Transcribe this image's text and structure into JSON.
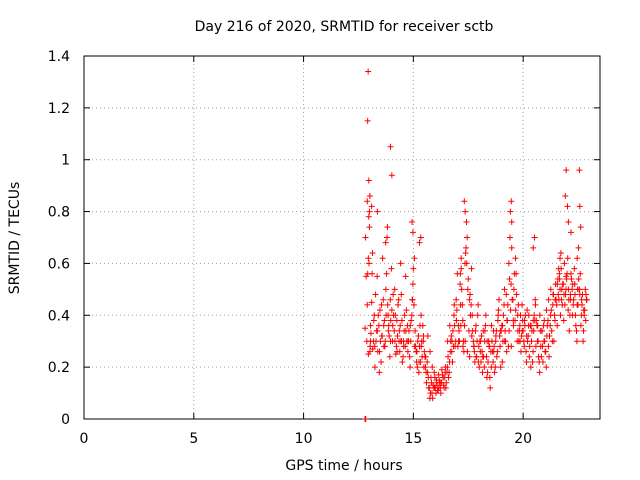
{
  "chart_data": {
    "type": "scatter",
    "title": "Day 216 of 2020, SRMTID for receiver sctb",
    "xlabel": "GPS time / hours",
    "ylabel": "SRMTID / TECUs",
    "xlim": [
      0,
      23.5
    ],
    "ylim": [
      0,
      1.4
    ],
    "x_ticks": [
      0,
      5,
      10,
      15,
      20
    ],
    "x_tick_labels": [
      "0",
      "5",
      "10",
      "15",
      "20"
    ],
    "y_ticks": [
      0,
      0.2,
      0.4,
      0.6,
      0.8,
      1.0,
      1.2,
      1.4
    ],
    "y_tick_labels": [
      "0",
      "0.2",
      "0.4",
      "0.6",
      "0.8",
      "1",
      "1.2",
      "1.4"
    ],
    "grid": true,
    "marker": "+",
    "color": "#ff0000",
    "series": [
      {
        "name": "SRMTID",
        "x": [
          12.8,
          12.82,
          12.85,
          12.88,
          12.9,
          12.92,
          12.95,
          12.98,
          13.0,
          13.05,
          13.1,
          13.15,
          13.2,
          13.25,
          13.3,
          13.35,
          13.4,
          13.45,
          13.5,
          13.55,
          13.6,
          13.65,
          13.7,
          13.75,
          13.8,
          13.85,
          13.9,
          13.95,
          14.0,
          14.05,
          14.1,
          14.15,
          14.2,
          14.25,
          14.3,
          14.35,
          14.4,
          14.45,
          14.5,
          14.55,
          14.6,
          14.65,
          14.7,
          14.75,
          14.8,
          14.85,
          14.9,
          14.95,
          15.0,
          15.05,
          15.1,
          15.15,
          15.2,
          15.25,
          15.3,
          15.35,
          15.4,
          15.45,
          15.5,
          15.55,
          15.6,
          15.65,
          15.7,
          15.75,
          15.8,
          15.85,
          15.9,
          15.95,
          16.0,
          16.05,
          16.1,
          16.15,
          16.2,
          16.25,
          16.3,
          16.35,
          16.4,
          16.45,
          16.5,
          16.55,
          16.6,
          16.65,
          16.7,
          16.75,
          16.8,
          16.85,
          16.9,
          16.95,
          17.0,
          17.05,
          17.1,
          17.15,
          17.2,
          17.25,
          17.3,
          17.35,
          17.4,
          17.45,
          17.5,
          17.55,
          17.6,
          17.65,
          17.7,
          17.75,
          17.8,
          17.85,
          17.9,
          17.95,
          18.0,
          18.05,
          18.1,
          18.15,
          18.2,
          18.25,
          18.3,
          18.35,
          18.4,
          18.45,
          18.5,
          18.55,
          18.6,
          18.65,
          18.7,
          18.75,
          18.8,
          18.85,
          18.9,
          18.95,
          19.0,
          19.05,
          19.1,
          19.15,
          19.2,
          19.25,
          19.3,
          19.35,
          19.4,
          19.45,
          19.5,
          19.55,
          19.6,
          19.65,
          19.7,
          19.75,
          19.8,
          19.85,
          19.9,
          19.95,
          20.0,
          20.05,
          20.1,
          20.15,
          20.2,
          20.25,
          20.3,
          20.35,
          20.4,
          20.45,
          20.5,
          20.55,
          20.6,
          20.65,
          20.7,
          20.75,
          20.8,
          20.85,
          20.9,
          20.95,
          21.0,
          21.05,
          21.1,
          21.15,
          21.2,
          21.25,
          21.3,
          21.35,
          21.4,
          21.45,
          21.5,
          21.55,
          21.6,
          21.65,
          21.7,
          21.75,
          21.8,
          21.85,
          21.9,
          21.95,
          22.0,
          22.05,
          22.1,
          22.15,
          22.2,
          22.25,
          22.3,
          22.35,
          22.4,
          22.45,
          22.5,
          22.55,
          22.6,
          22.65,
          22.7,
          22.75,
          22.8,
          22.85,
          22.9,
          12.95,
          13.0,
          13.02,
          13.05,
          13.12,
          13.18,
          13.22,
          13.28,
          13.33,
          13.38,
          13.43,
          13.48,
          13.53,
          13.58,
          13.63,
          13.68,
          13.72,
          13.78,
          13.83,
          13.88,
          13.93,
          13.97,
          14.02,
          14.08,
          14.13,
          14.18,
          14.23,
          14.28,
          14.33,
          14.38,
          14.43,
          14.48,
          14.53,
          14.58,
          14.63,
          14.68,
          14.73,
          14.78,
          14.83,
          14.88,
          14.93,
          14.98,
          15.03,
          15.08,
          15.13,
          15.18,
          15.23,
          15.28,
          15.33,
          15.38,
          15.43,
          15.48,
          15.53,
          15.58,
          15.63,
          15.68,
          15.73,
          15.78,
          15.83,
          15.88,
          15.93,
          15.98,
          16.03,
          16.08,
          16.13,
          16.18,
          16.23,
          16.28,
          16.33,
          16.38,
          16.43,
          16.48,
          16.53,
          16.58,
          16.63,
          16.68,
          16.73,
          16.78,
          16.83,
          16.88,
          16.93,
          16.98,
          17.03,
          17.08,
          17.13,
          17.18,
          17.23,
          17.28,
          17.33,
          17.38,
          17.43,
          17.48,
          17.53,
          17.58,
          17.63,
          17.68,
          17.73,
          17.78,
          17.83,
          17.88,
          17.93,
          17.98,
          18.03,
          18.08,
          18.13,
          18.18,
          18.23,
          18.28,
          18.33,
          18.38,
          18.43,
          18.48,
          18.53,
          18.58,
          18.63,
          18.68,
          18.73,
          18.78,
          18.83,
          18.88,
          18.93,
          18.98,
          19.03,
          19.08,
          19.13,
          19.18,
          19.23,
          19.28,
          19.33,
          19.38,
          19.43,
          19.48,
          19.53,
          19.58,
          19.63,
          19.68,
          19.73,
          19.78,
          19.83,
          19.88,
          19.93,
          19.98,
          20.03,
          20.08,
          20.13,
          20.18,
          20.23,
          20.28,
          20.33,
          20.38,
          20.43,
          20.48,
          20.53,
          20.58,
          20.63,
          20.68,
          20.73,
          20.78,
          20.83,
          20.88,
          20.93,
          20.98,
          21.03,
          21.08,
          21.13,
          21.18,
          21.23,
          21.28,
          21.33,
          21.38,
          21.43,
          21.48,
          21.53,
          21.58,
          21.63,
          21.68,
          21.73,
          21.78,
          21.83,
          21.88,
          21.93,
          21.98,
          22.03,
          22.08,
          22.13,
          22.18,
          22.23,
          22.28,
          22.33,
          22.38,
          22.43,
          22.48,
          22.53,
          22.58,
          22.63,
          22.68,
          22.73,
          22.78,
          22.83,
          22.88,
          12.9,
          12.97,
          13.03,
          13.07,
          13.14,
          13.24,
          13.36,
          13.46,
          13.56,
          13.66,
          13.76,
          13.86,
          13.96,
          14.06,
          14.16,
          14.26,
          14.36,
          14.46,
          14.56,
          14.66,
          14.76,
          14.86,
          14.96,
          15.06,
          15.16,
          15.26,
          15.36,
          15.46,
          15.56,
          15.66,
          15.76,
          15.86,
          15.96,
          16.06,
          16.16,
          16.26,
          16.36,
          16.46,
          16.56,
          16.66,
          16.76,
          16.86,
          16.96,
          17.06,
          17.16,
          17.26,
          17.36,
          17.46,
          17.56,
          17.66,
          17.76,
          17.86,
          17.96,
          18.06,
          18.16,
          18.26,
          18.36,
          18.46,
          18.56,
          18.66,
          18.76,
          18.86,
          18.96,
          19.06,
          19.16,
          19.26,
          19.36,
          19.46,
          19.56,
          19.66,
          19.76,
          19.86,
          19.96,
          20.06,
          20.16,
          20.26,
          20.36,
          20.46,
          20.56,
          20.66,
          20.76,
          20.86,
          20.96,
          21.06,
          21.16,
          21.26,
          21.36,
          21.46,
          21.56,
          21.66,
          21.76,
          21.86,
          21.96,
          22.06,
          22.16,
          22.26,
          22.36,
          22.46,
          22.56,
          22.66,
          22.76,
          22.86,
          12.8,
          12.81,
          12.83,
          12.92,
          12.94,
          12.97,
          13.02,
          13.1,
          13.36,
          13.96,
          14.02,
          13.82,
          13.74,
          14.94,
          14.98,
          17.32,
          17.42,
          17.36,
          19.42,
          19.48,
          19.46,
          21.96,
          21.92,
          22.02,
          22.06,
          22.56,
          22.58,
          22.62,
          22.46,
          22.52,
          22.18,
          21.62,
          21.68,
          21.72,
          20.52,
          20.46,
          17.14,
          17.18,
          15.28,
          15.34,
          14.42
        ],
        "y": [
          0.35,
          0.7,
          0.55,
          0.3,
          0.84,
          0.56,
          0.25,
          0.6,
          0.8,
          0.3,
          0.45,
          0.27,
          0.38,
          0.2,
          0.3,
          0.55,
          0.4,
          0.18,
          0.3,
          0.44,
          0.62,
          0.36,
          0.28,
          0.5,
          0.7,
          0.4,
          0.32,
          0.46,
          0.58,
          0.3,
          0.4,
          0.5,
          0.25,
          0.38,
          0.44,
          0.3,
          0.36,
          0.48,
          0.22,
          0.3,
          0.4,
          0.55,
          0.3,
          0.26,
          0.34,
          0.2,
          0.38,
          0.46,
          0.58,
          0.62,
          0.28,
          0.22,
          0.3,
          0.18,
          0.36,
          0.4,
          0.24,
          0.3,
          0.26,
          0.2,
          0.14,
          0.18,
          0.12,
          0.08,
          0.16,
          0.1,
          0.13,
          0.18,
          0.12,
          0.15,
          0.11,
          0.17,
          0.14,
          0.1,
          0.19,
          0.16,
          0.12,
          0.18,
          0.14,
          0.2,
          0.16,
          0.22,
          0.3,
          0.26,
          0.34,
          0.4,
          0.28,
          0.46,
          0.56,
          0.36,
          0.3,
          0.44,
          0.5,
          0.38,
          0.26,
          0.6,
          0.66,
          0.7,
          0.54,
          0.46,
          0.4,
          0.58,
          0.34,
          0.28,
          0.22,
          0.36,
          0.3,
          0.44,
          0.2,
          0.26,
          0.32,
          0.18,
          0.24,
          0.3,
          0.4,
          0.16,
          0.22,
          0.28,
          0.12,
          0.2,
          0.26,
          0.34,
          0.18,
          0.3,
          0.24,
          0.38,
          0.46,
          0.28,
          0.34,
          0.22,
          0.4,
          0.5,
          0.3,
          0.26,
          0.44,
          0.6,
          0.7,
          0.52,
          0.46,
          0.38,
          0.56,
          0.62,
          0.48,
          0.4,
          0.3,
          0.36,
          0.26,
          0.44,
          0.34,
          0.28,
          0.4,
          0.22,
          0.3,
          0.36,
          0.28,
          0.2,
          0.34,
          0.26,
          0.4,
          0.46,
          0.38,
          0.3,
          0.24,
          0.18,
          0.28,
          0.34,
          0.22,
          0.3,
          0.26,
          0.2,
          0.36,
          0.28,
          0.32,
          0.4,
          0.34,
          0.44,
          0.3,
          0.38,
          0.46,
          0.36,
          0.48,
          0.56,
          0.4,
          0.46,
          0.52,
          0.38,
          0.44,
          0.5,
          0.56,
          0.42,
          0.34,
          0.48,
          0.54,
          0.4,
          0.46,
          0.52,
          0.36,
          0.3,
          0.44,
          0.5,
          0.56,
          0.4,
          0.48,
          0.34,
          0.42,
          0.38,
          0.46,
          0.62,
          0.74,
          0.26,
          0.36,
          0.56,
          0.3,
          0.4,
          0.48,
          0.34,
          0.26,
          0.36,
          0.42,
          0.22,
          0.32,
          0.46,
          0.38,
          0.3,
          0.56,
          0.44,
          0.36,
          0.24,
          0.38,
          0.42,
          0.48,
          0.34,
          0.4,
          0.28,
          0.32,
          0.46,
          0.26,
          0.3,
          0.38,
          0.24,
          0.34,
          0.28,
          0.42,
          0.36,
          0.3,
          0.24,
          0.3,
          0.4,
          0.52,
          0.44,
          0.34,
          0.26,
          0.2,
          0.32,
          0.28,
          0.22,
          0.3,
          0.36,
          0.2,
          0.24,
          0.18,
          0.22,
          0.16,
          0.12,
          0.1,
          0.14,
          0.08,
          0.12,
          0.16,
          0.1,
          0.13,
          0.11,
          0.15,
          0.12,
          0.14,
          0.17,
          0.13,
          0.16,
          0.12,
          0.18,
          0.24,
          0.18,
          0.26,
          0.32,
          0.22,
          0.28,
          0.36,
          0.3,
          0.42,
          0.28,
          0.34,
          0.52,
          0.58,
          0.44,
          0.3,
          0.36,
          0.64,
          0.6,
          0.5,
          0.34,
          0.48,
          0.44,
          0.4,
          0.3,
          0.26,
          0.34,
          0.24,
          0.4,
          0.28,
          0.3,
          0.22,
          0.26,
          0.34,
          0.2,
          0.36,
          0.24,
          0.18,
          0.3,
          0.16,
          0.26,
          0.3,
          0.22,
          0.28,
          0.2,
          0.34,
          0.26,
          0.42,
          0.32,
          0.2,
          0.36,
          0.3,
          0.44,
          0.34,
          0.48,
          0.38,
          0.28,
          0.54,
          0.42,
          0.66,
          0.46,
          0.5,
          0.38,
          0.56,
          0.3,
          0.44,
          0.34,
          0.4,
          0.32,
          0.38,
          0.3,
          0.36,
          0.26,
          0.42,
          0.32,
          0.24,
          0.36,
          0.3,
          0.22,
          0.34,
          0.38,
          0.28,
          0.36,
          0.3,
          0.22,
          0.34,
          0.24,
          0.28,
          0.36,
          0.3,
          0.26,
          0.32,
          0.38,
          0.24,
          0.36,
          0.42,
          0.3,
          0.48,
          0.4,
          0.52,
          0.44,
          0.54,
          0.46,
          0.5,
          0.58,
          0.44,
          0.52,
          0.6,
          0.48,
          0.54,
          0.62,
          0.46,
          0.4,
          0.56,
          0.5,
          0.44,
          0.58,
          0.4,
          0.34,
          0.5,
          0.54,
          0.48,
          0.36,
          0.44,
          0.3,
          0.4,
          0.5,
          0.46,
          0.44,
          0.78,
          0.28,
          0.33,
          0.64,
          0.28,
          0.34,
          0.26,
          0.32,
          0.28,
          0.4,
          0.34,
          0.3,
          0.36,
          0.3,
          0.26,
          0.34,
          0.3,
          0.28,
          0.34,
          0.3,
          0.36,
          0.46,
          0.28,
          0.26,
          0.22,
          0.28,
          0.32,
          0.24,
          0.32,
          0.26,
          0.2,
          0.12,
          0.14,
          0.12,
          0.14,
          0.16,
          0.2,
          0.3,
          0.36,
          0.3,
          0.44,
          0.38,
          0.3,
          0.36,
          0.28,
          0.3,
          0.26,
          0.24,
          0.32,
          0.28,
          0.24,
          0.22,
          0.3,
          0.24,
          0.34,
          0.3,
          0.28,
          0.36,
          0.26,
          0.32,
          0.4,
          0.34,
          0.36,
          0.3,
          0.38,
          0.34,
          0.28,
          0.36,
          0.42,
          0.34,
          0.3,
          0.34,
          0.38,
          0.32,
          0.4,
          0.36,
          0.38,
          0.44,
          0.36,
          0.4,
          0.34,
          0.38,
          0.42,
          0.46,
          0.5,
          0.48,
          0.46,
          0.52,
          0.54,
          0.5,
          0.48,
          0.55,
          0.5,
          0.46,
          0.52,
          0.48,
          0.44,
          0.5,
          0.46,
          0.42,
          0.48,
          0.0,
          0.0,
          0.0,
          1.15,
          1.34,
          0.92,
          0.86,
          0.82,
          0.8,
          1.05,
          0.94,
          0.74,
          0.68,
          0.76,
          0.72,
          0.84,
          0.76,
          0.8,
          0.8,
          0.76,
          0.84,
          0.96,
          0.86,
          0.82,
          0.76,
          0.96,
          0.82,
          0.74,
          0.62,
          0.66,
          0.72,
          0.58,
          0.62,
          0.64,
          0.7,
          0.66,
          0.56,
          0.62,
          0.68,
          0.7,
          0.6
        ]
      }
    ]
  }
}
